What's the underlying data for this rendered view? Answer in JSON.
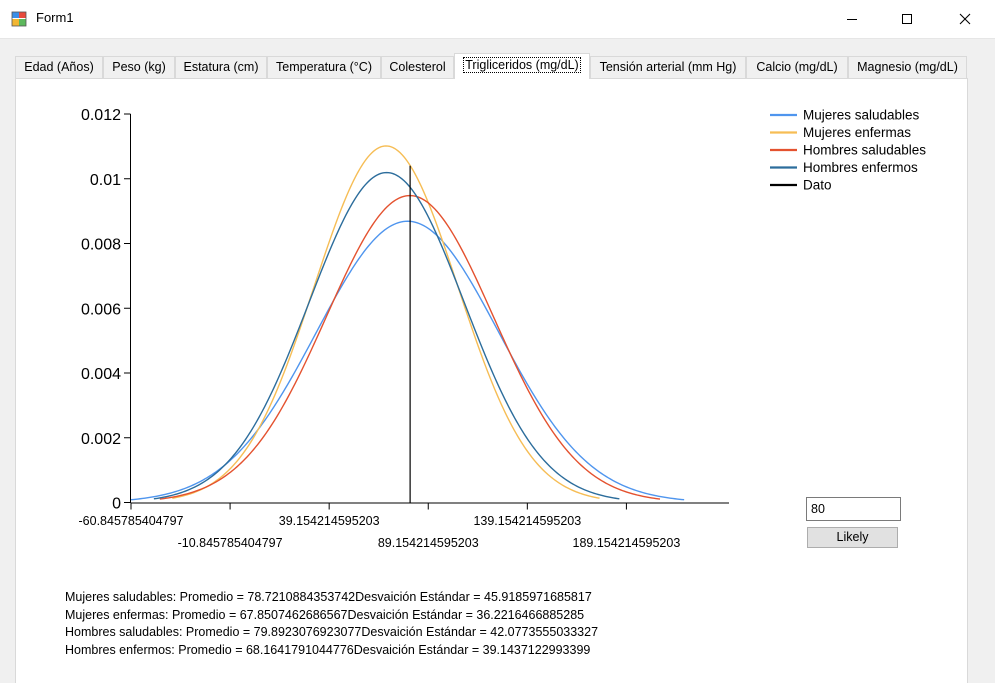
{
  "window": {
    "title": "Form1"
  },
  "tabs": [
    {
      "label": "Edad (Años)",
      "active": false
    },
    {
      "label": "Peso (kg)",
      "active": false
    },
    {
      "label": "Estatura (cm)",
      "active": false
    },
    {
      "label": "Temperatura (°C)",
      "active": false
    },
    {
      "label": "Colesterol",
      "active": false
    },
    {
      "label": "Trigliceridos (mg/dL)",
      "active": true
    },
    {
      "label": "Tensión arterial (mm Hg)",
      "active": false
    },
    {
      "label": "Calcio (mg/dL)",
      "active": false
    },
    {
      "label": "Magnesio (mg/dL)",
      "active": false
    }
  ],
  "chart_data": {
    "type": "line",
    "title": "",
    "xlabel": "",
    "ylabel": "",
    "xlim": [
      -60.845785404797,
      239.154214595203
    ],
    "ylim": [
      0,
      0.012
    ],
    "x_tick_labels": [
      "-60.845785404797",
      "-10.845785404797",
      "39.154214595203",
      "89.154214595203",
      "139.154214595203",
      "189.154214595203"
    ],
    "x_ticks": [
      -60.845785404797,
      -10.845785404797,
      39.154214595203,
      89.154214595203,
      139.154214595203,
      189.154214595203
    ],
    "y_tick_labels": [
      "0",
      "0.002",
      "0.004",
      "0.006",
      "0.008",
      "0.01",
      "0.012"
    ],
    "y_ticks": [
      0,
      0.002,
      0.004,
      0.006,
      0.008,
      0.01,
      0.012
    ],
    "legend_position": "top-right",
    "grid": false,
    "series": [
      {
        "name": "Mujeres saludables",
        "color": "#4f95ee",
        "mean": 78.7210884353742,
        "sd": 45.9185971685817,
        "x_range": [
          -60.845785404797,
          218.288
        ]
      },
      {
        "name": "Mujeres enfermas",
        "color": "#f6bd55",
        "mean": 67.8507462686567,
        "sd": 36.2216466885285,
        "x_range": [
          -40.0,
          175.6
        ]
      },
      {
        "name": "Hombres saludables",
        "color": "#e4522f",
        "mean": 79.8923076923077,
        "sd": 42.0773555033327,
        "x_range": [
          -46.3,
          206.1
        ]
      },
      {
        "name": "Hombres enfermos",
        "color": "#2c6d9c",
        "mean": 68.1641791044776,
        "sd": 39.1437122993399,
        "x_range": [
          -49.3,
          185.6
        ]
      }
    ],
    "marker": {
      "name": "Dato",
      "color": "#000000",
      "x": 80,
      "y_top": 0.0104
    }
  },
  "input": {
    "value": "80"
  },
  "button": {
    "label": "Likely"
  },
  "stats": [
    "Mujeres saludables: Promedio = 78.7210884353742Desvaición Estándar = 45.9185971685817",
    "Mujeres enfermas: Promedio = 67.8507462686567Desvaición Estándar = 36.2216466885285",
    "Hombres saludables: Promedio = 79.8923076923077Desvaición Estándar = 42.0773555033327",
    "Hombres enfermos: Promedio = 68.1641791044776Desvaición Estándar = 39.1437122993399"
  ]
}
